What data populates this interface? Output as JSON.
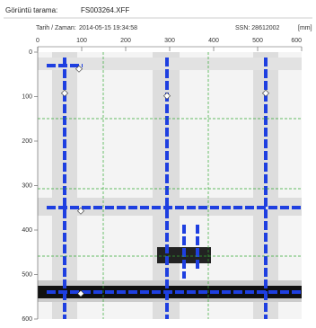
{
  "header": {
    "scan_label": "Görüntü tarama:",
    "file": "FS003264.XFF",
    "date_label": "Tarih / Zaman:",
    "date": "2014-05-15 19:34:58",
    "ssn": "SSN: 28612002",
    "unit": "[mm]"
  },
  "axes": {
    "xticks": [
      0,
      100,
      200,
      300,
      400,
      500,
      600
    ],
    "yticks": [
      0,
      100,
      200,
      300,
      400,
      500,
      600
    ]
  }
}
